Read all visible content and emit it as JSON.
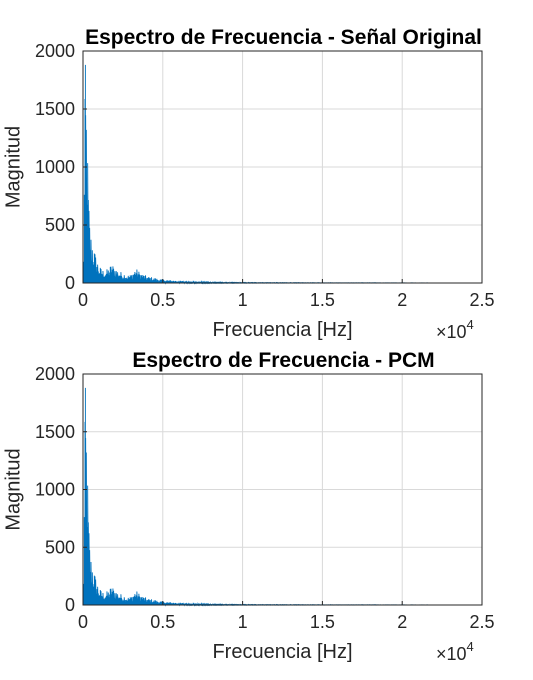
{
  "chart_data": [
    {
      "type": "area",
      "title": "Espectro de Frecuencia - Señal Original",
      "xlabel": "Frecuencia [Hz]",
      "ylabel": "Magnitud",
      "x_multiplier": "×10",
      "x_multiplier_exp": "4",
      "xlim": [
        0,
        2.5
      ],
      "ylim": [
        0,
        2000
      ],
      "xticks": [
        0,
        0.5,
        1,
        1.5,
        2,
        2.5
      ],
      "xtick_labels": [
        "0",
        "0.5",
        "1",
        "1.5",
        "2",
        "2.5"
      ],
      "yticks": [
        0,
        500,
        1000,
        1500,
        2000
      ],
      "ytick_labels": [
        "0",
        "500",
        "1000",
        "1500",
        "2000"
      ],
      "grid": true,
      "color": "#0072BD",
      "envelope_x": [
        0,
        0.005,
        0.01,
        0.015,
        0.02,
        0.025,
        0.03,
        0.035,
        0.04,
        0.05,
        0.06,
        0.07,
        0.08,
        0.09,
        0.1,
        0.12,
        0.14,
        0.16,
        0.18,
        0.2,
        0.22,
        0.24,
        0.26,
        0.28,
        0.3,
        0.33,
        0.36,
        0.4,
        0.45,
        0.5,
        0.55,
        0.6,
        0.7,
        0.8,
        0.9,
        1.0,
        1.2,
        1.5,
        2.0,
        2.5
      ],
      "envelope_y": [
        0,
        400,
        1300,
        1880,
        1720,
        1460,
        1050,
        800,
        600,
        430,
        380,
        300,
        240,
        200,
        150,
        120,
        110,
        130,
        170,
        140,
        110,
        95,
        85,
        70,
        75,
        130,
        90,
        60,
        45,
        30,
        25,
        20,
        12,
        8,
        5,
        4,
        3,
        2,
        1,
        0
      ]
    },
    {
      "type": "area",
      "title": "Espectro de Frecuencia - PCM",
      "xlabel": "Frecuencia [Hz]",
      "ylabel": "Magnitud",
      "x_multiplier": "×10",
      "x_multiplier_exp": "4",
      "xlim": [
        0,
        2.5
      ],
      "ylim": [
        0,
        2000
      ],
      "xticks": [
        0,
        0.5,
        1,
        1.5,
        2,
        2.5
      ],
      "xtick_labels": [
        "0",
        "0.5",
        "1",
        "1.5",
        "2",
        "2.5"
      ],
      "yticks": [
        0,
        500,
        1000,
        1500,
        2000
      ],
      "ytick_labels": [
        "0",
        "500",
        "1000",
        "1500",
        "2000"
      ],
      "grid": true,
      "color": "#0072BD",
      "envelope_x": [
        0,
        0.005,
        0.01,
        0.015,
        0.02,
        0.025,
        0.03,
        0.035,
        0.04,
        0.05,
        0.06,
        0.07,
        0.08,
        0.09,
        0.1,
        0.12,
        0.14,
        0.16,
        0.18,
        0.2,
        0.22,
        0.24,
        0.26,
        0.28,
        0.3,
        0.33,
        0.36,
        0.4,
        0.45,
        0.5,
        0.55,
        0.6,
        0.7,
        0.8,
        0.9,
        1.0,
        1.2,
        1.5,
        2.0,
        2.5
      ],
      "envelope_y": [
        0,
        400,
        1300,
        1880,
        1720,
        1460,
        1050,
        800,
        600,
        430,
        380,
        300,
        240,
        200,
        150,
        120,
        110,
        130,
        170,
        140,
        110,
        95,
        85,
        70,
        75,
        130,
        90,
        60,
        45,
        30,
        25,
        20,
        12,
        8,
        5,
        4,
        3,
        2,
        1,
        0
      ]
    }
  ]
}
